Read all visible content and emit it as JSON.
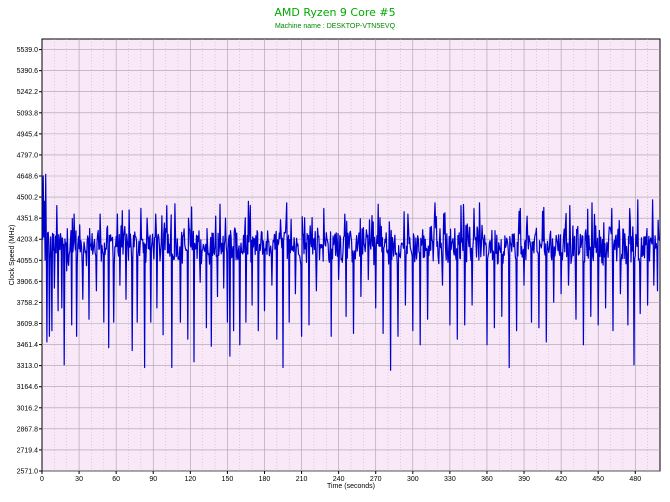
{
  "chart_data": {
    "type": "line",
    "title": "AMD Ryzen 9 Core #5",
    "subtitle": "Machine name : DESKTOP-VTN5EVQ",
    "xlabel": "Time (seconds)",
    "ylabel": "Clock Speed (MHz)",
    "xlim": [
      0,
      500
    ],
    "ylim": [
      2571.0,
      5613.5
    ],
    "x_ticks": [
      0,
      30,
      60,
      90,
      120,
      150,
      180,
      210,
      240,
      270,
      300,
      330,
      360,
      390,
      420,
      450,
      480
    ],
    "y_ticks": [
      "5539.0",
      "5390.6",
      "5242.2",
      "5093.8",
      "4945.4",
      "4797.0",
      "4648.6",
      "4500.2",
      "4351.8",
      "4203.4",
      "4055.0",
      "3906.6",
      "3758.2",
      "3609.8",
      "3461.4",
      "3313.0",
      "3164.6",
      "3016.2",
      "2867.8",
      "2719.4",
      "2571.0"
    ],
    "grid": true,
    "series": [
      {
        "color": "#0000cc",
        "baseline": 4160,
        "spikes": [
          {
            "x": 1,
            "y": 4650
          },
          {
            "x": 3,
            "y": 4660
          },
          {
            "x": 4,
            "y": 3480
          },
          {
            "x": 6,
            "y": 3520
          },
          {
            "x": 8,
            "y": 3560
          },
          {
            "x": 10,
            "y": 3860
          },
          {
            "x": 13,
            "y": 3700
          },
          {
            "x": 16,
            "y": 3720
          },
          {
            "x": 18,
            "y": 3320
          },
          {
            "x": 20,
            "y": 3980
          },
          {
            "x": 24,
            "y": 3600
          },
          {
            "x": 28,
            "y": 3520
          },
          {
            "x": 33,
            "y": 3780
          },
          {
            "x": 38,
            "y": 3640
          },
          {
            "x": 44,
            "y": 3840
          },
          {
            "x": 50,
            "y": 3620
          },
          {
            "x": 54,
            "y": 3440
          },
          {
            "x": 58,
            "y": 3620
          },
          {
            "x": 63,
            "y": 3880
          },
          {
            "x": 68,
            "y": 3780
          },
          {
            "x": 73,
            "y": 3420
          },
          {
            "x": 77,
            "y": 3620
          },
          {
            "x": 83,
            "y": 3300
          },
          {
            "x": 88,
            "y": 3620
          },
          {
            "x": 93,
            "y": 3720
          },
          {
            "x": 98,
            "y": 3530
          },
          {
            "x": 105,
            "y": 3300
          },
          {
            "x": 112,
            "y": 3620
          },
          {
            "x": 118,
            "y": 3500
          },
          {
            "x": 123,
            "y": 3340
          },
          {
            "x": 128,
            "y": 3900
          },
          {
            "x": 133,
            "y": 3580
          },
          {
            "x": 137,
            "y": 3450
          },
          {
            "x": 142,
            "y": 3800
          },
          {
            "x": 147,
            "y": 3860
          },
          {
            "x": 150,
            "y": 3620
          },
          {
            "x": 152,
            "y": 3380
          },
          {
            "x": 155,
            "y": 3560
          },
          {
            "x": 160,
            "y": 3460
          },
          {
            "x": 165,
            "y": 3620
          },
          {
            "x": 170,
            "y": 3740
          },
          {
            "x": 175,
            "y": 3560
          },
          {
            "x": 180,
            "y": 3700
          },
          {
            "x": 186,
            "y": 3880
          },
          {
            "x": 190,
            "y": 3500
          },
          {
            "x": 195,
            "y": 3300
          },
          {
            "x": 200,
            "y": 3620
          },
          {
            "x": 205,
            "y": 3820
          },
          {
            "x": 210,
            "y": 3520
          },
          {
            "x": 216,
            "y": 3600
          },
          {
            "x": 222,
            "y": 3840
          },
          {
            "x": 228,
            "y": 3920
          },
          {
            "x": 234,
            "y": 3520
          },
          {
            "x": 240,
            "y": 3920
          },
          {
            "x": 246,
            "y": 3660
          },
          {
            "x": 252,
            "y": 3540
          },
          {
            "x": 258,
            "y": 3800
          },
          {
            "x": 264,
            "y": 3920
          },
          {
            "x": 270,
            "y": 3720
          },
          {
            "x": 276,
            "y": 3540
          },
          {
            "x": 282,
            "y": 3280
          },
          {
            "x": 288,
            "y": 3520
          },
          {
            "x": 294,
            "y": 3740
          },
          {
            "x": 300,
            "y": 3560
          },
          {
            "x": 306,
            "y": 3460
          },
          {
            "x": 312,
            "y": 3640
          },
          {
            "x": 318,
            "y": 3760
          },
          {
            "x": 324,
            "y": 3880
          },
          {
            "x": 330,
            "y": 3600
          },
          {
            "x": 336,
            "y": 3500
          },
          {
            "x": 342,
            "y": 3600
          },
          {
            "x": 348,
            "y": 3740
          },
          {
            "x": 354,
            "y": 3860
          },
          {
            "x": 360,
            "y": 3460
          },
          {
            "x": 366,
            "y": 3580
          },
          {
            "x": 372,
            "y": 3660
          },
          {
            "x": 378,
            "y": 3300
          },
          {
            "x": 384,
            "y": 3560
          },
          {
            "x": 390,
            "y": 3880
          },
          {
            "x": 396,
            "y": 3620
          },
          {
            "x": 402,
            "y": 3580
          },
          {
            "x": 408,
            "y": 3480
          },
          {
            "x": 414,
            "y": 3760
          },
          {
            "x": 420,
            "y": 3820
          },
          {
            "x": 426,
            "y": 3880
          },
          {
            "x": 432,
            "y": 3640
          },
          {
            "x": 438,
            "y": 3460
          },
          {
            "x": 444,
            "y": 3660
          },
          {
            "x": 450,
            "y": 3600
          },
          {
            "x": 456,
            "y": 3720
          },
          {
            "x": 462,
            "y": 3560
          },
          {
            "x": 468,
            "y": 3820
          },
          {
            "x": 474,
            "y": 3600
          },
          {
            "x": 479,
            "y": 3320
          },
          {
            "x": 484,
            "y": 3680
          },
          {
            "x": 490,
            "y": 3740
          },
          {
            "x": 495,
            "y": 3880
          },
          {
            "x": 498,
            "y": 3840
          }
        ],
        "peaks": [
          {
            "x": 2,
            "y": 4470
          },
          {
            "x": 12,
            "y": 4440
          },
          {
            "x": 26,
            "y": 4380
          },
          {
            "x": 47,
            "y": 4380
          },
          {
            "x": 61,
            "y": 4380
          },
          {
            "x": 80,
            "y": 4420
          },
          {
            "x": 92,
            "y": 4380
          },
          {
            "x": 101,
            "y": 4440
          },
          {
            "x": 121,
            "y": 4430
          },
          {
            "x": 144,
            "y": 4450
          },
          {
            "x": 167,
            "y": 4470
          },
          {
            "x": 198,
            "y": 4460
          },
          {
            "x": 228,
            "y": 4420
          },
          {
            "x": 245,
            "y": 4380
          },
          {
            "x": 272,
            "y": 4450
          },
          {
            "x": 296,
            "y": 4380
          },
          {
            "x": 318,
            "y": 4460
          },
          {
            "x": 339,
            "y": 4440
          },
          {
            "x": 354,
            "y": 4460
          },
          {
            "x": 387,
            "y": 4420
          },
          {
            "x": 405,
            "y": 4400
          },
          {
            "x": 427,
            "y": 4440
          },
          {
            "x": 445,
            "y": 4460
          },
          {
            "x": 461,
            "y": 4420
          },
          {
            "x": 482,
            "y": 4480
          },
          {
            "x": 494,
            "y": 4480
          }
        ]
      }
    ]
  }
}
